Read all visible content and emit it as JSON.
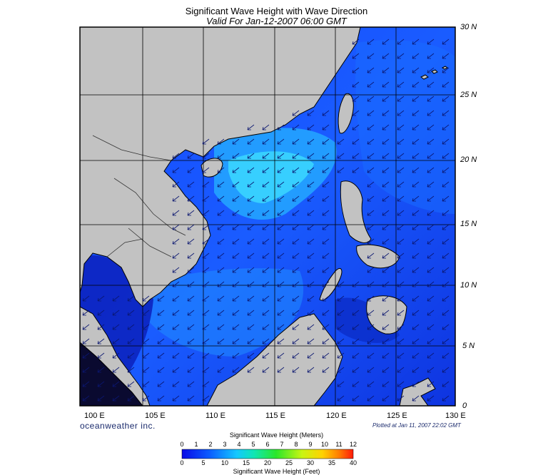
{
  "title": "Significant Wave Height with Wave Direction",
  "subtitle": "Valid For Jan-12-2007 06:00 GMT",
  "longitude_labels": [
    "100 E",
    "105 E",
    "110 E",
    "115 E",
    "120 E",
    "125 E",
    "130 E"
  ],
  "latitude_labels": [
    "30 N",
    "25 N",
    "20 N",
    "15 N",
    "10 N",
    "5 N",
    "0"
  ],
  "brand": "oceanweather inc.",
  "plotted": "Plotted at Jan 11, 2007 22:02 GMT",
  "legend": {
    "meters_title": "Significant Wave Height (Meters)",
    "feet_title": "Significant Wave Height (Feet)",
    "meter_ticks": [
      "0",
      "1",
      "2",
      "3",
      "4",
      "5",
      "6",
      "7",
      "8",
      "9",
      "10",
      "11",
      "12"
    ],
    "feet_ticks": [
      "0",
      "5",
      "10",
      "15",
      "20",
      "25",
      "30",
      "35",
      "40"
    ]
  },
  "wave_direction": "from northeast",
  "colors": {
    "land": "#c2c2c2",
    "sea_low": "#0a22c8",
    "sea_mid": "#1560ff",
    "sea_high": "#2fd0ff",
    "arrows": "#0b1770"
  }
}
